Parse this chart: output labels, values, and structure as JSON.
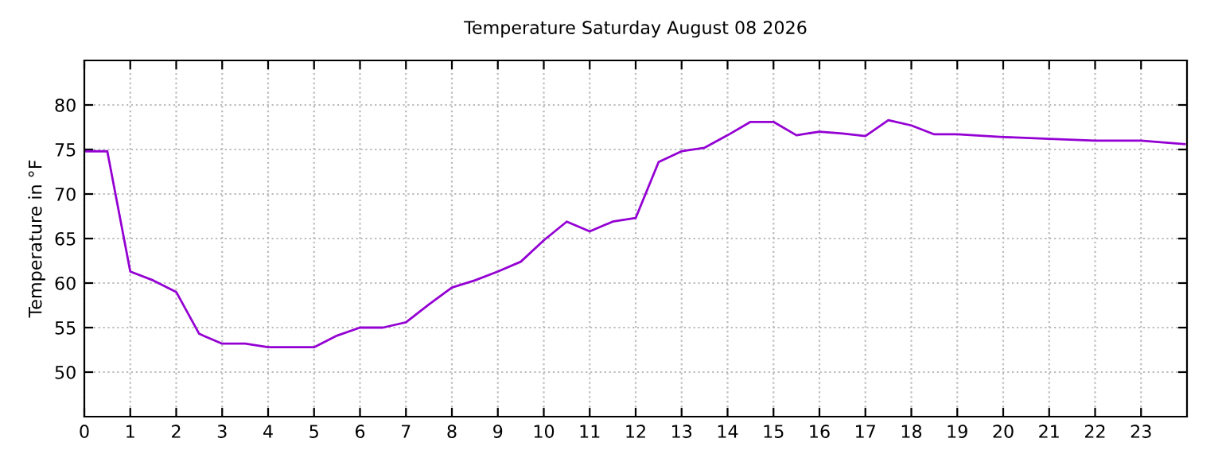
{
  "chart_data": {
    "type": "line",
    "title": "Temperature Saturday August 08 2026",
    "ylabel": "Temperature in °F",
    "x": [
      0,
      0.5,
      1,
      1.5,
      2,
      2.5,
      3,
      3.5,
      4,
      4.5,
      5,
      5.5,
      6,
      6.5,
      7,
      7.5,
      8,
      8.5,
      9,
      9.5,
      10,
      10.5,
      11,
      11.5,
      12,
      12.5,
      13,
      13.5,
      14,
      14.5,
      15,
      15.5,
      16,
      16.5,
      17,
      17.5,
      18,
      18.5,
      19,
      20,
      21,
      22,
      23,
      23.95
    ],
    "series": [
      {
        "color": "#9400d3",
        "values": [
          74.8,
          74.8,
          61.3,
          60.3,
          59.0,
          54.3,
          53.2,
          53.2,
          52.8,
          52.8,
          52.8,
          54.1,
          55.0,
          55.0,
          55.6,
          57.6,
          59.5,
          60.3,
          61.3,
          62.4,
          64.8,
          66.9,
          65.8,
          66.9,
          67.3,
          73.6,
          74.8,
          75.2,
          76.6,
          78.1,
          78.1,
          76.6,
          77.0,
          76.8,
          76.5,
          78.3,
          77.7,
          76.7,
          76.7,
          76.4,
          76.2,
          76.0,
          76.0,
          75.6
        ]
      }
    ],
    "xlim": [
      0,
      24
    ],
    "xticks": [
      0,
      1,
      2,
      3,
      4,
      5,
      6,
      7,
      8,
      9,
      10,
      11,
      12,
      13,
      14,
      15,
      16,
      17,
      18,
      19,
      20,
      21,
      22,
      23
    ],
    "ylim": [
      45,
      85
    ],
    "yticks": [
      50,
      55,
      60,
      65,
      70,
      75,
      80
    ],
    "grid": true,
    "legend": false,
    "marker": "none",
    "line_style": "solid"
  }
}
